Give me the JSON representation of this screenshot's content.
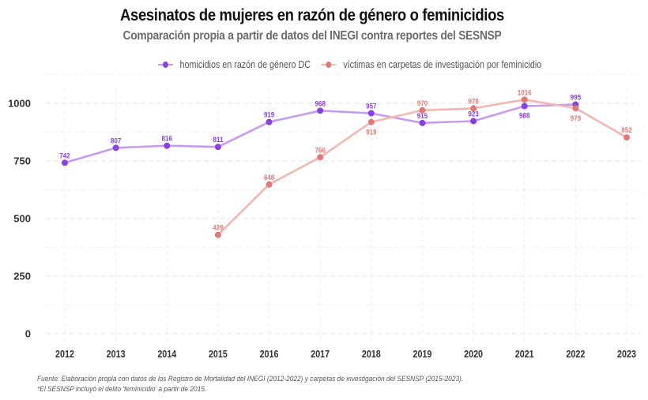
{
  "chart_data": {
    "type": "line",
    "title": "Asesinatos de mujeres en razón de género o feminicidios",
    "subtitle": "Comparación propia a partir de datos del INEGI contra reportes del SESNSP",
    "xlabel": "",
    "ylabel": "",
    "categories": [
      "2012",
      "2013",
      "2014",
      "2015",
      "2016",
      "2017",
      "2018",
      "2019",
      "2020",
      "2021",
      "2022",
      "2023"
    ],
    "ylim": [
      0,
      1000
    ],
    "yticks": [
      0,
      250,
      500,
      750,
      1000
    ],
    "grid": true,
    "legend_position": "top",
    "series": [
      {
        "name": "homicidios en razón de género DC",
        "color": "#8a3fe0",
        "line_color": "#c79cf0",
        "label_position": "above",
        "values": [
          742,
          807,
          816,
          811,
          919,
          968,
          957,
          915,
          923,
          988,
          995,
          null
        ]
      },
      {
        "name": "víctimas en carpetas de investigación por feminicidio",
        "color": "#e07a78",
        "line_color": "#f0b8b0",
        "label_position": "mixed",
        "values": [
          null,
          null,
          null,
          429,
          648,
          766,
          919,
          970,
          978,
          1016,
          979,
          852
        ]
      }
    ]
  },
  "footnote": {
    "line1": "Fuente: Elaboración propia con datos de los Registro de Mortalidad del INEGI (2012-2022) y carpetas de investigación del SESNSP (2015-2023).",
    "line2": "*El SESNSP incluyó el delito 'feminicidio' a partir de 2015."
  }
}
